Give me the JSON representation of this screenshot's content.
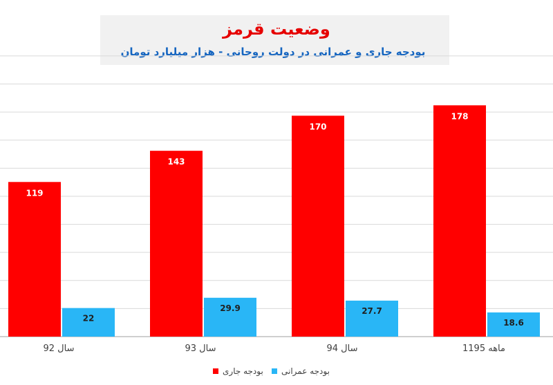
{
  "chart_data": {
    "type": "bar",
    "title": "وضعیت قرمز",
    "subtitle": "بودجه جاری و عمرانی در دولت روحانی - هزار میلیارد تومان",
    "categories": [
      "سال 92",
      "سال 93",
      "سال 94",
      "11ماهه 95"
    ],
    "series": [
      {
        "name": "بودجه جاری",
        "values": [
          119,
          143,
          170,
          178
        ],
        "color": "#ff0000"
      },
      {
        "name": "بودجه عمرانی",
        "values": [
          22,
          29.9,
          27.7,
          18.6
        ],
        "color": "#29b6f6"
      }
    ],
    "value_labels": {
      "current": [
        "119",
        "143",
        "170",
        "178"
      ],
      "development": [
        "22",
        "29.9",
        "27.7",
        "18.6"
      ]
    },
    "ylim": [
      0,
      200
    ],
    "grid": true,
    "legend_position": "bottom-center",
    "title_color": "#e60000",
    "subtitle_color": "#1565c0"
  }
}
